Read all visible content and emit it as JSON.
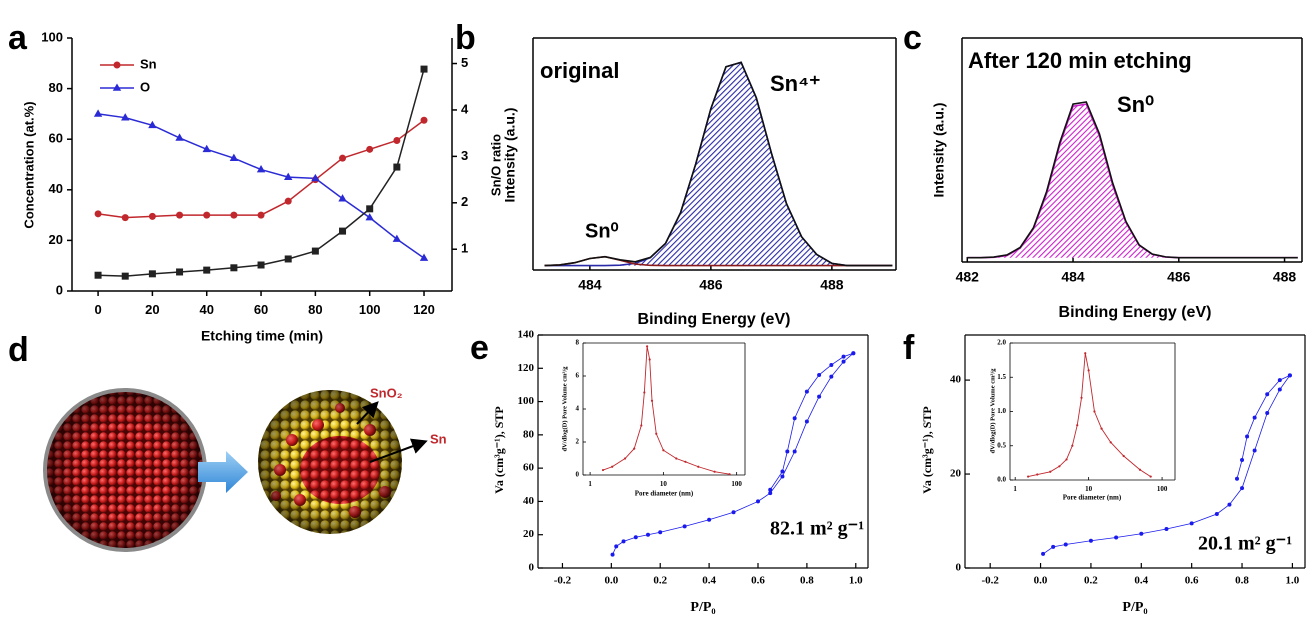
{
  "chart_data": [
    {
      "type": "line",
      "panel_label": "a",
      "xlabel": "Etching time (min)",
      "ylabel": "Concentration (at.%)",
      "y2label": "Sn/O ratio",
      "x": [
        0,
        10,
        20,
        30,
        40,
        50,
        60,
        70,
        80,
        90,
        100,
        110,
        120
      ],
      "xlim": [
        -9.6,
        130.3
      ],
      "xticks": [
        0,
        20,
        40,
        60,
        80,
        100,
        120
      ],
      "ylim": [
        0,
        100
      ],
      "yticks": [
        0,
        20,
        40,
        60,
        80,
        100
      ],
      "y2lim": [
        0.1,
        5.55
      ],
      "y2ticks": [
        1,
        2,
        3,
        4,
        5
      ],
      "legend": "upper left",
      "series": [
        {
          "name": "Sn",
          "color": "#c0282d",
          "marker": "circle",
          "values": [
            30.5,
            29,
            29.5,
            30,
            30,
            30,
            30,
            35.5,
            44,
            52.5,
            56,
            59.5,
            67.5
          ]
        },
        {
          "name": "O",
          "color": "#2b2bd6",
          "marker": "triangle",
          "values": [
            70,
            68.5,
            65.5,
            60.5,
            56,
            52.5,
            48,
            45,
            44.5,
            36.5,
            29,
            20.5,
            13
          ]
        },
        {
          "color": "#222222",
          "marker": "square",
          "axis": "y2",
          "values": [
            0.44,
            0.42,
            0.47,
            0.51,
            0.55,
            0.6,
            0.66,
            0.79,
            0.96,
            1.39,
            1.87,
            2.77,
            4.88
          ]
        }
      ]
    },
    {
      "type": "area",
      "panel_label": "b",
      "xlabel": "Binding Energy (eV)",
      "ylabel": "Intensity (a.u.)",
      "annotations": [
        "original",
        "Sn⁴⁺",
        "Sn⁰"
      ],
      "x": [
        483.25,
        483.5,
        483.75,
        484,
        484.25,
        484.5,
        484.75,
        485,
        485.25,
        485.5,
        485.75,
        486,
        486.25,
        486.5,
        486.75,
        487,
        487.25,
        487.5,
        487.75,
        488,
        488.25,
        488.5,
        488.75,
        489
      ],
      "xlim": [
        483.06,
        489.06
      ],
      "xticks": [
        484,
        486,
        488
      ],
      "ylim": [
        0,
        1.05
      ],
      "series": [
        {
          "color": "#2a2aa8",
          "hatch": true,
          "values": [
            0.02,
            0.02,
            0.02,
            0.02,
            0.02,
            0.022,
            0.03,
            0.056,
            0.12,
            0.26,
            0.48,
            0.73,
            0.92,
            0.94,
            0.78,
            0.53,
            0.3,
            0.15,
            0.07,
            0.03,
            0.02,
            0.02,
            0.02,
            0.02
          ]
        },
        {
          "color": "#8b1a1a",
          "values": [
            0.02,
            0.023,
            0.033,
            0.052,
            0.06,
            0.044,
            0.027,
            0.021,
            0.02,
            0.02,
            0.02,
            0.02,
            0.02,
            0.02,
            0.02,
            0.02,
            0.02,
            0.02,
            0.02,
            0.02,
            0.02,
            0.02,
            0.02,
            0.02
          ]
        },
        {
          "color": "#111111",
          "values": [
            0.02,
            0.023,
            0.033,
            0.052,
            0.06,
            0.046,
            0.037,
            0.057,
            0.12,
            0.26,
            0.48,
            0.73,
            0.92,
            0.94,
            0.78,
            0.53,
            0.3,
            0.15,
            0.07,
            0.03,
            0.02,
            0.02,
            0.02,
            0.02
          ]
        }
      ]
    },
    {
      "type": "area",
      "panel_label": "c",
      "xlabel": "Binding Energy (eV)",
      "ylabel": "Intensity (a.u.)",
      "annotations": [
        "After 120 min etching",
        "Sn⁰"
      ],
      "x": [
        482,
        482.25,
        482.5,
        482.75,
        483,
        483.25,
        483.5,
        483.75,
        484,
        484.25,
        484.5,
        484.75,
        485,
        485.25,
        485.5,
        485.75,
        486,
        486.25,
        486.5,
        486.75,
        487,
        487.25,
        487.5,
        487.75,
        488,
        488.25
      ],
      "xlim": [
        481.9,
        488.33
      ],
      "xticks": [
        482,
        484,
        486,
        488
      ],
      "ylim": [
        0,
        1.05
      ],
      "series": [
        {
          "color": "#cc22cc",
          "hatch": true,
          "values": [
            0.02,
            0.02,
            0.022,
            0.03,
            0.065,
            0.155,
            0.32,
            0.55,
            0.73,
            0.74,
            0.59,
            0.36,
            0.185,
            0.078,
            0.036,
            0.023,
            0.02,
            0.02,
            0.02,
            0.02,
            0.02,
            0.02,
            0.02,
            0.02,
            0.02,
            0.02
          ]
        },
        {
          "color": "#111111",
          "values": [
            0.02,
            0.02,
            0.023,
            0.033,
            0.068,
            0.16,
            0.33,
            0.56,
            0.74,
            0.75,
            0.6,
            0.37,
            0.19,
            0.08,
            0.037,
            0.024,
            0.02,
            0.02,
            0.02,
            0.02,
            0.02,
            0.02,
            0.02,
            0.02,
            0.02,
            0.02
          ]
        }
      ]
    },
    {
      "type": "scatter",
      "panel_label": "e",
      "xlabel": "P/P₀",
      "ylabel": "Va (cm³g⁻¹), STP",
      "annotations": [
        "82.1 m² g⁻¹"
      ],
      "xlim": [
        -0.3,
        1.05
      ],
      "xticks": [
        -0.2,
        {
          "value": 0,
          "label": "0.0"
        },
        0.2,
        0.4,
        0.6,
        0.8,
        {
          "value": 1,
          "label": "1.0"
        }
      ],
      "ylim": [
        0,
        140
      ],
      "yticks": [
        0,
        20,
        40,
        60,
        80,
        100,
        120,
        140
      ],
      "series": [
        {
          "color": "#1a1aee",
          "x": [
            0.005,
            0.02,
            0.05,
            0.1,
            0.15,
            0.2,
            0.3,
            0.4,
            0.5,
            0.6,
            0.65,
            0.7,
            0.75,
            0.8,
            0.85,
            0.9,
            0.95,
            0.99
          ],
          "values": [
            8,
            13,
            16,
            18.5,
            20,
            21.5,
            25,
            29,
            33.5,
            40,
            45,
            55,
            70,
            88,
            103,
            115,
            124,
            129
          ]
        },
        {
          "color": "#1a1aee",
          "x": [
            0.99,
            0.95,
            0.9,
            0.85,
            0.8,
            0.75,
            0.72,
            0.7,
            0.65
          ],
          "values": [
            129,
            127,
            122,
            116,
            106,
            90,
            70,
            58,
            47
          ]
        }
      ]
    },
    {
      "type": "line",
      "xlabel": "Pore diameter (nm)",
      "ylabel": "dV/dlog(D) Pore Volume cm³/g",
      "log_x": true,
      "xlim": [
        0.8,
        130
      ],
      "xticks": [
        1,
        10,
        100
      ],
      "ylim": [
        0,
        8
      ],
      "yticks": [
        0,
        2,
        4,
        6,
        8
      ],
      "series": [
        {
          "color": "#c0282d",
          "marker": "dot",
          "x": [
            1.5,
            2,
            3,
            4,
            5,
            5.5,
            6,
            6.5,
            7,
            8,
            10,
            15,
            20,
            30,
            50,
            80
          ],
          "values": [
            0.3,
            0.5,
            1,
            1.6,
            3,
            5,
            7.8,
            7,
            4.5,
            2.5,
            1.5,
            1,
            0.8,
            0.5,
            0.2,
            0.05
          ]
        }
      ]
    },
    {
      "type": "scatter",
      "panel_label": "f",
      "xlabel": "P/P₀",
      "ylabel": "Va (cm³g⁻¹), STP",
      "annotations": [
        "20.1 m² g⁻¹"
      ],
      "xlim": [
        -0.3,
        1.05
      ],
      "xticks": [
        -0.2,
        {
          "value": 0,
          "label": "0.0"
        },
        0.2,
        0.4,
        0.6,
        0.8,
        {
          "value": 1,
          "label": "1.0"
        }
      ],
      "ylim": [
        0,
        49.6
      ],
      "yticks": [
        0,
        20,
        40
      ],
      "series": [
        {
          "color": "#1a1aee",
          "x": [
            0.01,
            0.05,
            0.1,
            0.2,
            0.3,
            0.4,
            0.5,
            0.6,
            0.7,
            0.75,
            0.8,
            0.85,
            0.9,
            0.95,
            0.99
          ],
          "values": [
            3,
            4.5,
            5,
            5.8,
            6.5,
            7.3,
            8.3,
            9.5,
            11.5,
            13.5,
            17,
            25,
            33,
            38,
            41
          ]
        },
        {
          "color": "#1a1aee",
          "x": [
            0.99,
            0.95,
            0.9,
            0.85,
            0.82,
            0.8,
            0.78
          ],
          "values": [
            41,
            40,
            37,
            32,
            28,
            23,
            19
          ]
        }
      ]
    },
    {
      "type": "line",
      "xlabel": "Pore diameter (nm)",
      "ylabel": "dV/dlog(D) Pore Volume cm³/g",
      "log_x": true,
      "xlim": [
        0.85,
        150
      ],
      "xticks": [
        1,
        10,
        100
      ],
      "ylim": [
        0,
        2
      ],
      "yticks": [
        {
          "value": 0,
          "label": "0.0"
        },
        0.5,
        {
          "value": 1,
          "label": "1.0"
        },
        1.5,
        {
          "value": 2,
          "label": "2.0"
        }
      ],
      "series": [
        {
          "color": "#c0282d",
          "marker": "dot",
          "x": [
            1.5,
            2,
            3,
            4,
            5,
            6,
            7,
            8,
            9,
            10,
            12,
            15,
            20,
            30,
            50,
            70
          ],
          "values": [
            0.05,
            0.08,
            0.12,
            0.2,
            0.3,
            0.5,
            0.8,
            1.2,
            1.85,
            1.6,
            1,
            0.75,
            0.55,
            0.35,
            0.15,
            0.05
          ]
        }
      ]
    }
  ],
  "diagram": {
    "panel_label": "d",
    "labels": [
      "SnO₂",
      "Sn"
    ]
  }
}
